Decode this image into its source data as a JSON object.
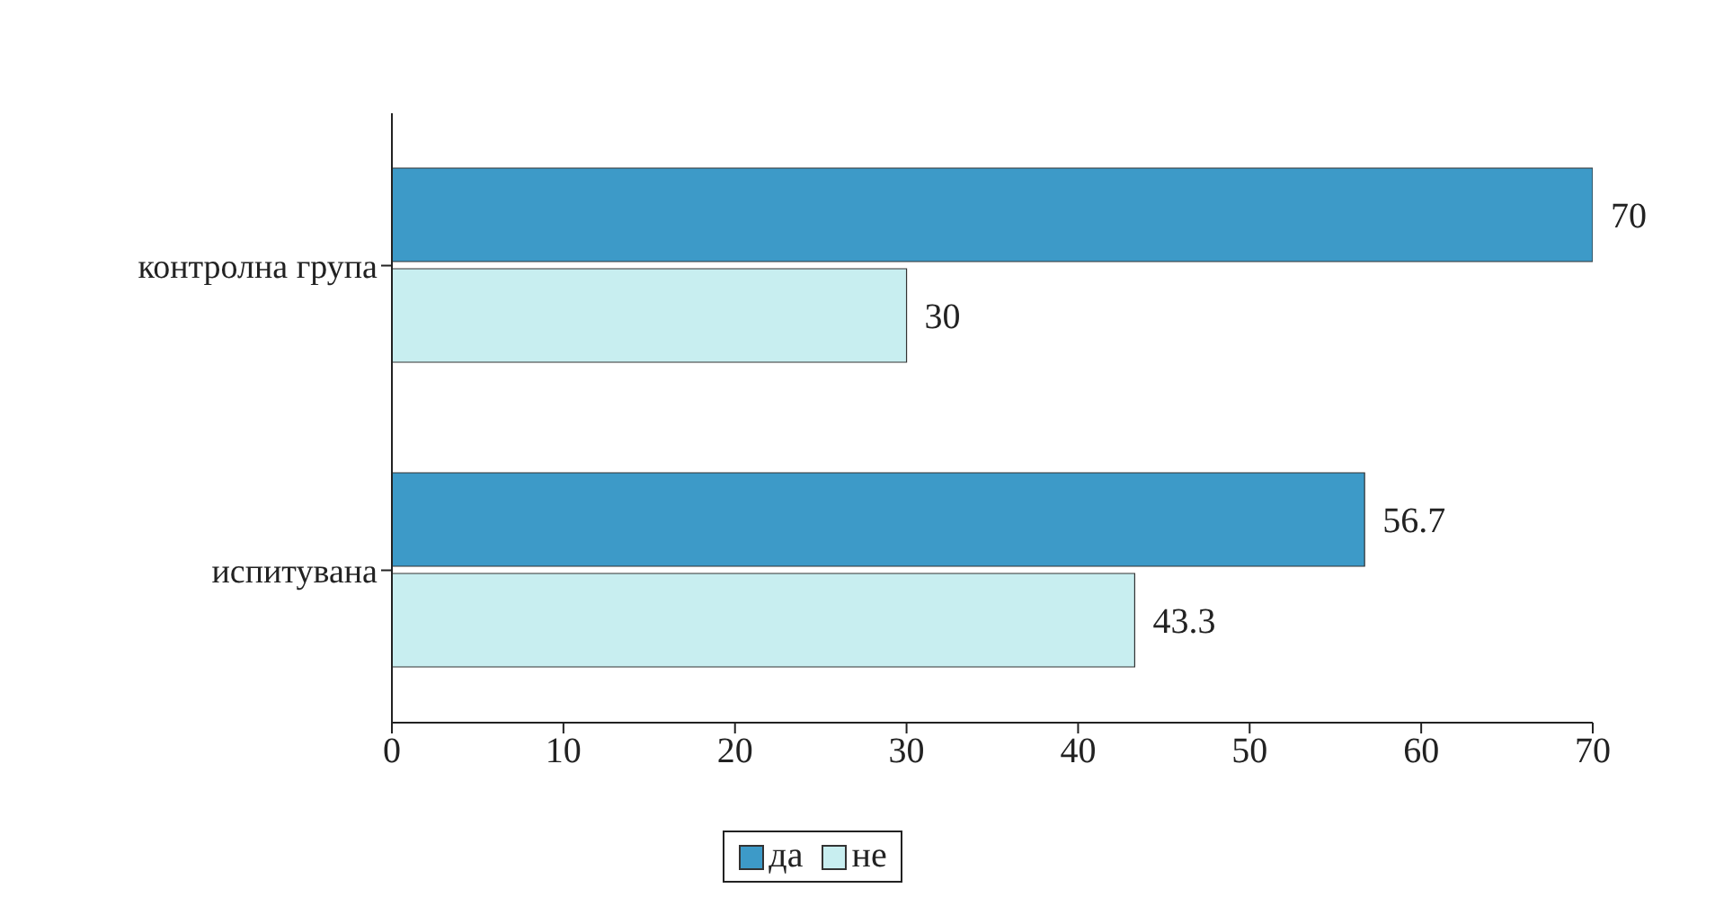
{
  "chart_data": {
    "type": "bar",
    "orientation": "horizontal",
    "categories": [
      "контролна група",
      "испитувана"
    ],
    "series": [
      {
        "name": "да",
        "color": "#3d9ac8",
        "values": [
          70,
          56.7
        ]
      },
      {
        "name": "не",
        "color": "#c8eef0",
        "values": [
          30,
          43.3
        ]
      }
    ],
    "xlim": [
      0,
      70
    ],
    "xticks": [
      0,
      10,
      20,
      30,
      40,
      50,
      60,
      70
    ],
    "grid": false,
    "legend": "bottom",
    "data_labels": true
  }
}
